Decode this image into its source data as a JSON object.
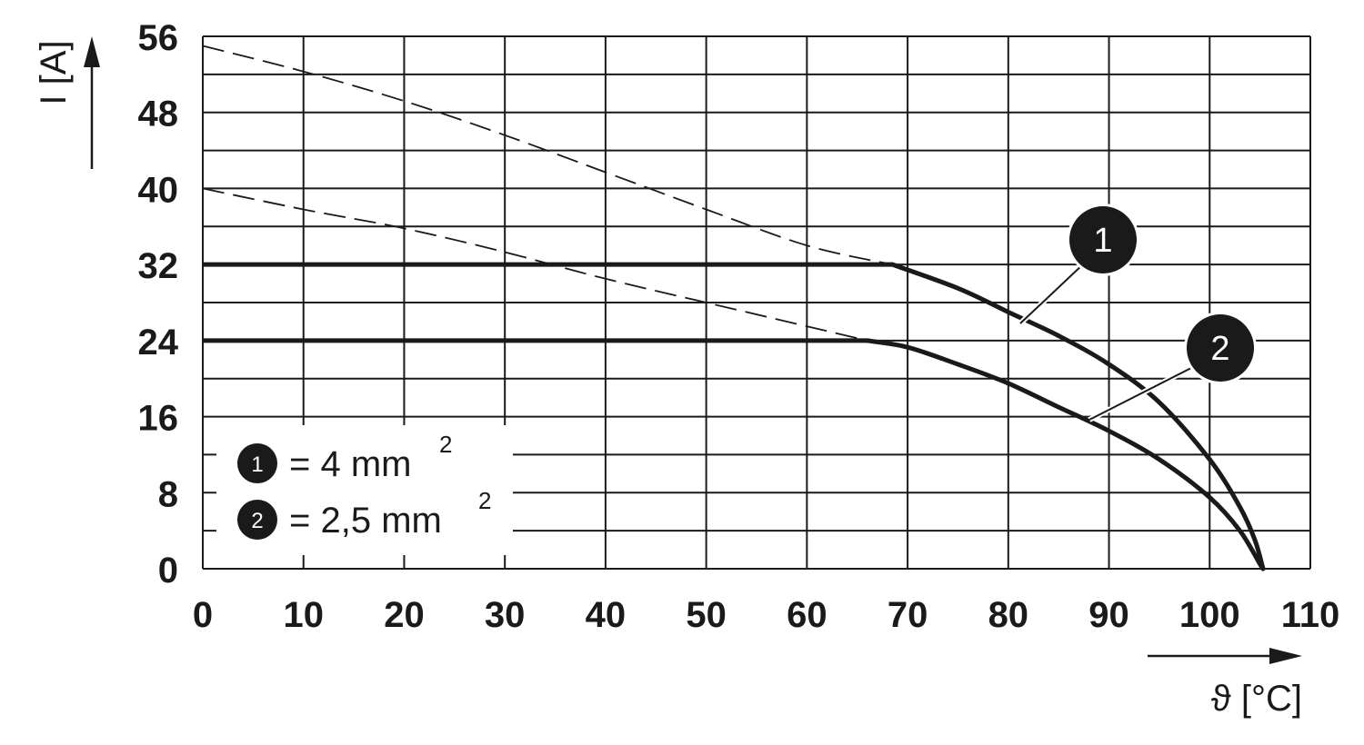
{
  "chart_data": {
    "type": "line",
    "xlabel": "ϑ [°C]",
    "ylabel": "I [A]",
    "xlim": [
      0,
      110
    ],
    "ylim": [
      0,
      56
    ],
    "x_ticks": [
      "0",
      "10",
      "20",
      "30",
      "40",
      "50",
      "60",
      "70",
      "80",
      "90",
      "100",
      "110"
    ],
    "y_ticks": [
      "0",
      "8",
      "16",
      "24",
      "32",
      "40",
      "48",
      "56"
    ],
    "grid": true,
    "series": [
      {
        "marker": "1",
        "solid": [
          [
            0,
            32
          ],
          [
            68.5,
            32
          ],
          [
            75,
            29.5
          ],
          [
            80,
            27
          ],
          [
            85,
            24.5
          ],
          [
            90,
            21.5
          ],
          [
            95,
            17.5
          ],
          [
            100,
            11.5
          ],
          [
            103,
            6.5
          ],
          [
            104.5,
            3
          ],
          [
            105.3,
            0
          ]
        ],
        "dashed": [
          [
            0,
            55
          ],
          [
            10,
            52.3
          ],
          [
            20,
            49.2
          ],
          [
            30,
            45.6
          ],
          [
            40,
            41.7
          ],
          [
            50,
            37.8
          ],
          [
            60,
            34
          ],
          [
            68.5,
            32
          ]
        ]
      },
      {
        "marker": "2",
        "solid": [
          [
            0,
            24
          ],
          [
            66,
            24
          ],
          [
            70,
            23.3
          ],
          [
            75,
            21.5
          ],
          [
            80,
            19.5
          ],
          [
            85,
            17
          ],
          [
            90,
            14.5
          ],
          [
            95,
            11.5
          ],
          [
            100,
            7.5
          ],
          [
            103,
            4
          ],
          [
            105,
            0.5
          ],
          [
            105.3,
            0
          ]
        ],
        "dashed": [
          [
            0,
            40
          ],
          [
            10,
            37.8
          ],
          [
            20,
            35.8
          ],
          [
            30,
            33.3
          ],
          [
            40,
            30.5
          ],
          [
            50,
            28
          ],
          [
            60,
            25.5
          ],
          [
            66,
            24
          ]
        ]
      }
    ],
    "legend": {
      "placement": "bottom-left",
      "entries": [
        {
          "marker": "1",
          "text": "= 4 mm",
          "sup": "2"
        },
        {
          "marker": "2",
          "text": "= 2,5 mm",
          "sup": "2"
        }
      ]
    },
    "colors": {
      "line": "#1a1a1a",
      "grid": "#1a1a1a",
      "marker_fill": "#1a1a1a",
      "marker_text": "#ffffff"
    }
  }
}
